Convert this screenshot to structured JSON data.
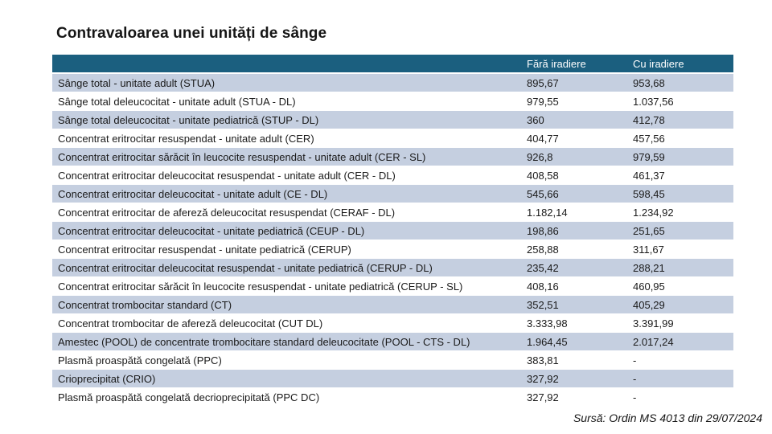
{
  "slide": {
    "title": "Contravaloarea unei unități de sânge",
    "source_note": "Sursă: Ordin MS 4013 din 29/07/2024"
  },
  "table": {
    "headers": {
      "product": "",
      "without_irradiation": "Fără iradiere",
      "with_irradiation": "Cu iradiere"
    },
    "rows": [
      {
        "product": "Sânge total - unitate adult (STUA)",
        "without_irradiation": "895,67",
        "with_irradiation": "953,68"
      },
      {
        "product": "Sânge total deleucocitat - unitate adult (STUA - DL)",
        "without_irradiation": "979,55",
        "with_irradiation": "1.037,56"
      },
      {
        "product": "Sânge total deleucocitat - unitate pediatrică (STUP - DL)",
        "without_irradiation": "360",
        "with_irradiation": "412,78"
      },
      {
        "product": "Concentrat eritrocitar resuspendat - unitate adult (CER)",
        "without_irradiation": "404,77",
        "with_irradiation": "457,56"
      },
      {
        "product": "Concentrat eritrocitar sărăcit în leucocite resuspendat - unitate adult (CER - SL)",
        "without_irradiation": "926,8",
        "with_irradiation": "979,59"
      },
      {
        "product": "Concentrat eritrocitar deleucocitat resuspendat - unitate adult (CER - DL)",
        "without_irradiation": "408,58",
        "with_irradiation": "461,37"
      },
      {
        "product": "Concentrat eritrocitar deleucocitat - unitate adult (CE - DL)",
        "without_irradiation": "545,66",
        "with_irradiation": "598,45"
      },
      {
        "product": "Concentrat eritrocitar de afereză deleucocitat resuspendat (CERAF - DL)",
        "without_irradiation": "1.182,14",
        "with_irradiation": "1.234,92"
      },
      {
        "product": "Concentrat eritrocitar deleucocitat - unitate pediatrică (CEUP - DL)",
        "without_irradiation": "198,86",
        "with_irradiation": "251,65"
      },
      {
        "product": "Concentrat eritrocitar resuspendat - unitate pediatrică (CERUP)",
        "without_irradiation": "258,88",
        "with_irradiation": "311,67"
      },
      {
        "product": "Concentrat eritrocitar deleucocitat resuspendat - unitate pediatrică (CERUP - DL)",
        "without_irradiation": "235,42",
        "with_irradiation": "288,21"
      },
      {
        "product": "Concentrat eritrocitar sărăcit în leucocite resuspendat - unitate pediatrică (CERUP - SL)",
        "without_irradiation": "408,16",
        "with_irradiation": "460,95"
      },
      {
        "product": "Concentrat trombocitar standard (CT)",
        "without_irradiation": "352,51",
        "with_irradiation": "405,29"
      },
      {
        "product": "Concentrat trombocitar de afereză deleucocitat (CUT DL)",
        "without_irradiation": "3.333,98",
        "with_irradiation": "3.391,99"
      },
      {
        "product": "Amestec (POOL) de concentrate trombocitare standard deleucocitate (POOL - CTS - DL)",
        "without_irradiation": "1.964,45",
        "with_irradiation": "2.017,24"
      },
      {
        "product": "Plasmă proaspătă congelată (PPC)",
        "without_irradiation": "383,81",
        "with_irradiation": "-"
      },
      {
        "product": "Crioprecipitat (CRIO)",
        "without_irradiation": "327,92",
        "with_irradiation": "-"
      },
      {
        "product": "Plasmă proaspătă congelată decrioprecipitată (PPC DC)",
        "without_irradiation": "327,92",
        "with_irradiation": "-"
      }
    ]
  },
  "colors": {
    "header_bg": "#1b5f7f",
    "header_text": "#ffffff",
    "band_row_bg": "#c5cfe0",
    "text": "#1a1a1a"
  }
}
